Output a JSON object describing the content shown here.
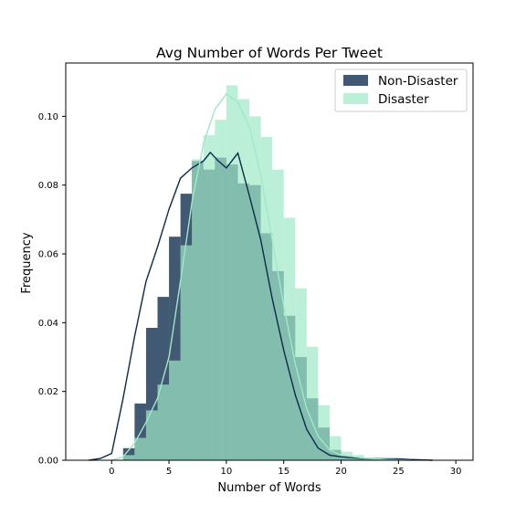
{
  "chart_data": {
    "type": "histogram",
    "title": "Avg Number of Words Per Tweet",
    "xlabel": "Number of Words",
    "ylabel": "Frequency",
    "xlim": [
      -4,
      31.5
    ],
    "ylim": [
      0,
      0.1155
    ],
    "xticks": [
      0,
      5,
      10,
      15,
      20,
      25,
      30
    ],
    "yticks": [
      0.0,
      0.02,
      0.04,
      0.06,
      0.08,
      0.1
    ],
    "xtick_labels": [
      "0",
      "5",
      "10",
      "15",
      "20",
      "25",
      "30"
    ],
    "ytick_labels": [
      "0.00",
      "0.02",
      "0.04",
      "0.06",
      "0.08",
      "0.10"
    ],
    "legend_position": "upper-right",
    "grid": false,
    "series": [
      {
        "name": "Non-Disaster",
        "color": "#0c2a4a",
        "bar_opacity": 0.78,
        "bins": [
          [
            1,
            2,
            0.0035
          ],
          [
            2,
            3,
            0.0165
          ],
          [
            3,
            4,
            0.0385
          ],
          [
            4,
            5,
            0.0475
          ],
          [
            5,
            6,
            0.065
          ],
          [
            6,
            7,
            0.0775
          ],
          [
            7,
            8,
            0.087
          ],
          [
            8,
            9,
            0.0845
          ],
          [
            9,
            10,
            0.088
          ],
          [
            10,
            11,
            0.086
          ],
          [
            11,
            12,
            0.0805
          ],
          [
            12,
            13,
            0.08
          ],
          [
            13,
            14,
            0.066
          ],
          [
            14,
            15,
            0.055
          ],
          [
            15,
            16,
            0.042
          ],
          [
            16,
            17,
            0.03
          ],
          [
            17,
            18,
            0.018
          ],
          [
            18,
            19,
            0.0095
          ],
          [
            19,
            20,
            0.003
          ],
          [
            20,
            21,
            0.0012
          ],
          [
            21,
            22,
            0.0008
          ],
          [
            22,
            23,
            0.0005
          ],
          [
            23,
            24,
            0.0004
          ],
          [
            24,
            25,
            0.0004
          ],
          [
            25,
            26,
            0.0003
          ],
          [
            26,
            27,
            0.0002
          ],
          [
            27,
            28,
            0.0001
          ]
        ],
        "kde": [
          [
            -2,
            0.0
          ],
          [
            -1,
            0.0005
          ],
          [
            0,
            0.002
          ],
          [
            1,
            0.018
          ],
          [
            2,
            0.036
          ],
          [
            3,
            0.052
          ],
          [
            4,
            0.062
          ],
          [
            5,
            0.073
          ],
          [
            6,
            0.082
          ],
          [
            7,
            0.085
          ],
          [
            8,
            0.087
          ],
          [
            8.6,
            0.0895
          ],
          [
            9.3,
            0.087
          ],
          [
            10,
            0.085
          ],
          [
            11,
            0.0893
          ],
          [
            12,
            0.077
          ],
          [
            13,
            0.064
          ],
          [
            14,
            0.047
          ],
          [
            15,
            0.032
          ],
          [
            16,
            0.019
          ],
          [
            17,
            0.009
          ],
          [
            18,
            0.0035
          ],
          [
            19,
            0.0015
          ],
          [
            20,
            0.001
          ],
          [
            22,
            0.0005
          ],
          [
            24,
            0.0004
          ],
          [
            25,
            0.0004
          ],
          [
            26,
            0.0002
          ],
          [
            28,
            0.0
          ]
        ]
      },
      {
        "name": "Disaster",
        "color": "#9fe8c8",
        "bar_opacity": 0.7,
        "bins": [
          [
            1,
            2,
            0.0015
          ],
          [
            2,
            3,
            0.0065
          ],
          [
            3,
            4,
            0.0145
          ],
          [
            4,
            5,
            0.022
          ],
          [
            5,
            6,
            0.029
          ],
          [
            6,
            7,
            0.0625
          ],
          [
            7,
            8,
            0.0875
          ],
          [
            8,
            9,
            0.0945
          ],
          [
            9,
            10,
            0.099
          ],
          [
            10,
            11,
            0.109
          ],
          [
            11,
            12,
            0.105
          ],
          [
            12,
            13,
            0.1
          ],
          [
            13,
            14,
            0.094
          ],
          [
            14,
            15,
            0.0845
          ],
          [
            15,
            16,
            0.0705
          ],
          [
            16,
            17,
            0.05
          ],
          [
            17,
            18,
            0.033
          ],
          [
            18,
            19,
            0.016
          ],
          [
            19,
            20,
            0.007
          ],
          [
            20,
            21,
            0.0025
          ],
          [
            21,
            22,
            0.0015
          ],
          [
            22,
            23,
            0.0008
          ],
          [
            23,
            24,
            0.0005
          ],
          [
            24,
            25,
            0.0002
          ]
        ],
        "kde": [
          [
            0,
            0.0
          ],
          [
            1,
            0.001
          ],
          [
            2,
            0.005
          ],
          [
            3,
            0.011
          ],
          [
            4,
            0.018
          ],
          [
            5,
            0.03
          ],
          [
            6,
            0.052
          ],
          [
            7,
            0.075
          ],
          [
            8,
            0.092
          ],
          [
            9,
            0.102
          ],
          [
            10,
            0.1065
          ],
          [
            11,
            0.104
          ],
          [
            12,
            0.097
          ],
          [
            13,
            0.083
          ],
          [
            14,
            0.064
          ],
          [
            15,
            0.045
          ],
          [
            16,
            0.028
          ],
          [
            17,
            0.015
          ],
          [
            18,
            0.007
          ],
          [
            19,
            0.003
          ],
          [
            20,
            0.0015
          ],
          [
            22,
            0.0006
          ],
          [
            24,
            0.0002
          ],
          [
            26,
            0.0
          ]
        ]
      }
    ]
  }
}
